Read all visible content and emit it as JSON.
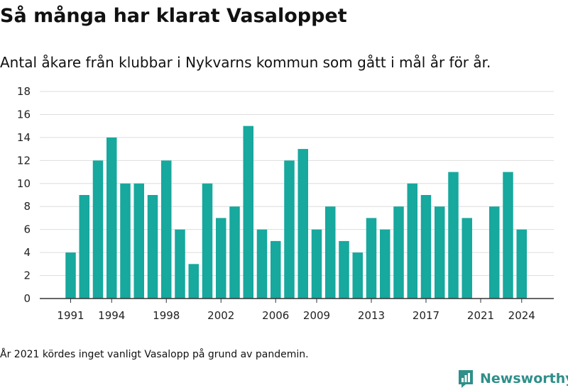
{
  "title": "Så många har klarat Vasaloppet",
  "subtitle": "Antal åkare från klubbar i Nykvarns kommun som gått i mål år för år.",
  "footnote": "År 2021 kördes inget vanligt Vasalopp på grund av pandemin.",
  "logo": {
    "text": "Newsworthy",
    "icon": "newsworthy-logo-icon"
  },
  "colors": {
    "bar": "#17a89e",
    "grid": "#dddddd",
    "axis": "#333333",
    "brand": "#2f8f8a"
  },
  "chart_data": {
    "type": "bar",
    "title": "Så många har klarat Vasaloppet",
    "subtitle": "Antal åkare från klubbar i Nykvarns kommun som gått i mål år för år.",
    "xlabel": "",
    "ylabel": "",
    "ylim": [
      0,
      18
    ],
    "yticks": [
      0,
      2,
      4,
      6,
      8,
      10,
      12,
      14,
      16,
      18
    ],
    "xtick_labels": [
      "1991",
      "1994",
      "1998",
      "2002",
      "2006",
      "2009",
      "2013",
      "2017",
      "2021",
      "2024"
    ],
    "grid": true,
    "legend": "none",
    "categories": [
      1991,
      1992,
      1993,
      1994,
      1995,
      1996,
      1997,
      1998,
      1999,
      2000,
      2001,
      2002,
      2003,
      2004,
      2005,
      2006,
      2007,
      2008,
      2009,
      2010,
      2011,
      2012,
      2013,
      2014,
      2015,
      2016,
      2017,
      2018,
      2019,
      2020,
      2021,
      2022,
      2023,
      2024
    ],
    "values": [
      4,
      9,
      12,
      14,
      10,
      10,
      9,
      12,
      6,
      3,
      10,
      7,
      8,
      15,
      6,
      5,
      12,
      13,
      6,
      8,
      5,
      4,
      7,
      6,
      8,
      10,
      9,
      8,
      11,
      7,
      null,
      8,
      11,
      6
    ]
  }
}
